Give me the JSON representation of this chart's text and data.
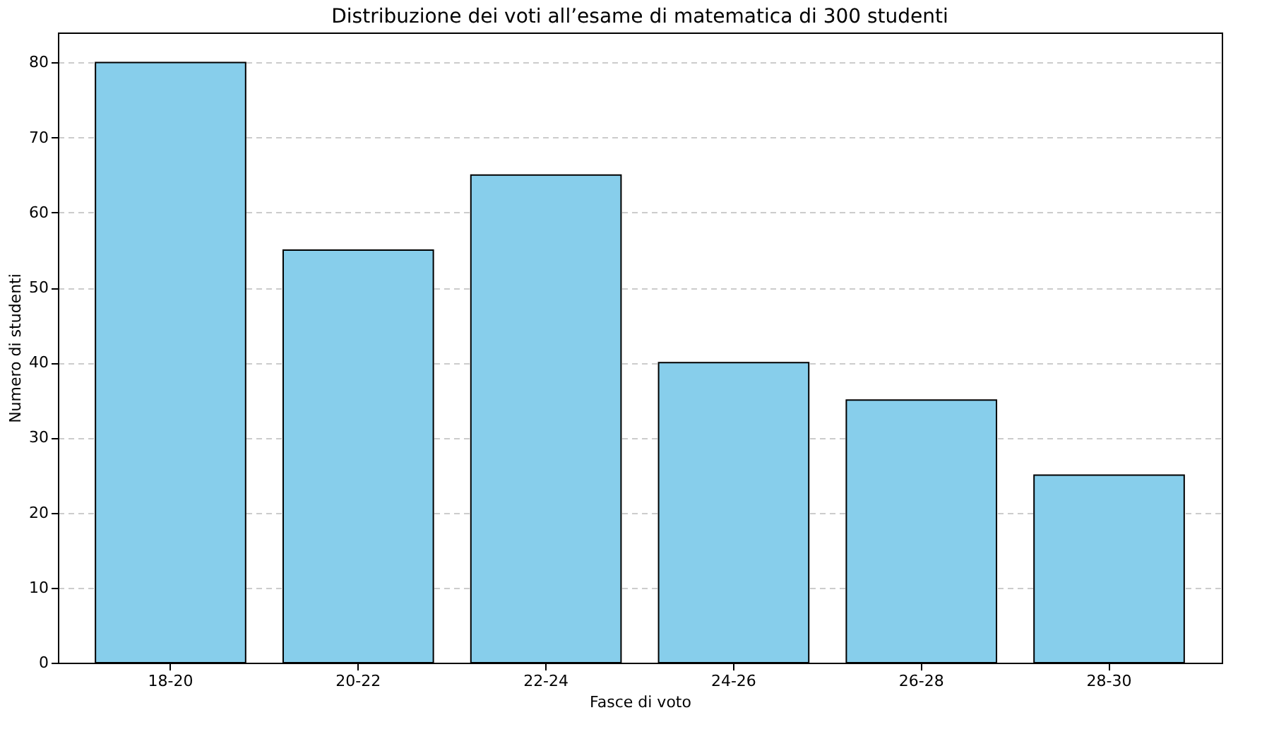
{
  "chart_data": {
    "type": "bar",
    "title": "Distribuzione dei voti all’esame di matematica di 300 studenti",
    "xlabel": "Fasce di voto",
    "ylabel": "Numero di studenti",
    "categories": [
      "18-20",
      "20-22",
      "22-24",
      "24-26",
      "26-28",
      "28-30"
    ],
    "values": [
      80,
      55,
      65,
      40,
      35,
      25
    ],
    "color": "#87ceeb",
    "ylim": [
      0,
      84
    ],
    "yticks": [
      0,
      10,
      20,
      30,
      40,
      50,
      60,
      70,
      80
    ],
    "grid": "y"
  }
}
